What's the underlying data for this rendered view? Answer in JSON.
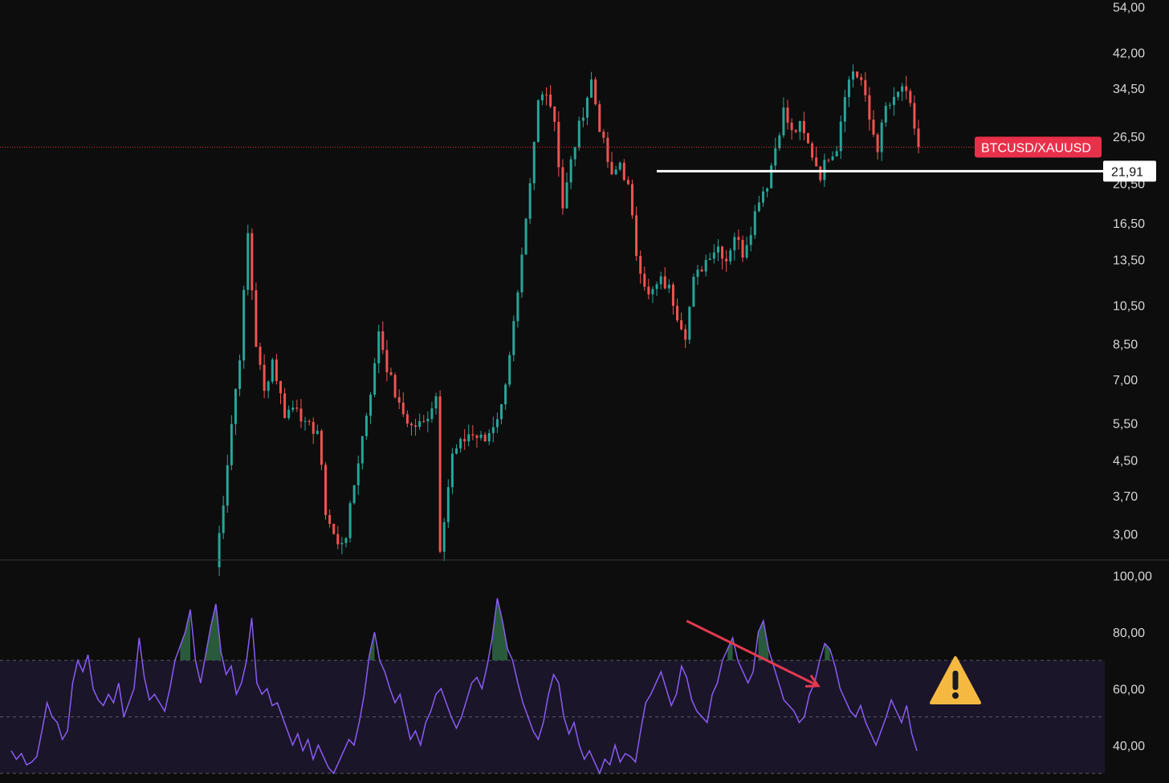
{
  "chart_data": [
    {
      "type": "candlestick",
      "symbol_label": "BTCUSD/XAUUSD",
      "y_scale": "log",
      "ylim": [
        2.6,
        56
      ],
      "y_ticks": [
        "54,00",
        "42,00",
        "34,50",
        "26,50",
        "20,50",
        "16,50",
        "13,50",
        "10,50",
        "8,50",
        "7,00",
        "5,50",
        "4,50",
        "3,70",
        "3,00"
      ],
      "y_tick_values": [
        54,
        42,
        34.5,
        26.5,
        20.5,
        16.5,
        13.5,
        10.5,
        8.5,
        7,
        5.5,
        4.5,
        3.7,
        3
      ],
      "last_price": 25.0,
      "support_line": {
        "label": "21,91",
        "value": 21.91
      },
      "colors": {
        "up": "#26a69a",
        "down": "#ef5350",
        "last_price_line": "#e53935",
        "symbol_badge": "#e8304a",
        "support": "#ffffff"
      },
      "series_anchors": [
        [
          0,
          2.5
        ],
        [
          2,
          3.6
        ],
        [
          4,
          5.5
        ],
        [
          6,
          8.0
        ],
        [
          8,
          15.5
        ],
        [
          10,
          8.5
        ],
        [
          12,
          6.5
        ],
        [
          14,
          7.8
        ],
        [
          17,
          5.8
        ],
        [
          20,
          6.1
        ],
        [
          22,
          5.4
        ],
        [
          25,
          5.3
        ],
        [
          27,
          3.4
        ],
        [
          30,
          2.8
        ],
        [
          32,
          3.0
        ],
        [
          35,
          4.5
        ],
        [
          37,
          5.8
        ],
        [
          39,
          7.5
        ],
        [
          40,
          9.2
        ],
        [
          42,
          7.5
        ],
        [
          45,
          6.0
        ],
        [
          48,
          5.4
        ],
        [
          51,
          5.5
        ],
        [
          54,
          6.4
        ],
        [
          55,
          2.8
        ],
        [
          58,
          4.6
        ],
        [
          62,
          5.2
        ],
        [
          66,
          5.0
        ],
        [
          70,
          6.0
        ],
        [
          74,
          11.0
        ],
        [
          77,
          20.0
        ],
        [
          79,
          32.0
        ],
        [
          81,
          34.5
        ],
        [
          83,
          29.0
        ],
        [
          85,
          18.0
        ],
        [
          87,
          23.0
        ],
        [
          89,
          28.0
        ],
        [
          92,
          36.0
        ],
        [
          94,
          28.0
        ],
        [
          97,
          21.0
        ],
        [
          99,
          23.0
        ],
        [
          101,
          20.0
        ],
        [
          103,
          14.0
        ],
        [
          106,
          11.0
        ],
        [
          109,
          12.0
        ],
        [
          111,
          11.5
        ],
        [
          113,
          10.0
        ],
        [
          115,
          9.0
        ],
        [
          117,
          12.0
        ],
        [
          121,
          14.0
        ],
        [
          123,
          14.5
        ],
        [
          125,
          13.5
        ],
        [
          127,
          15.5
        ],
        [
          129,
          14.0
        ],
        [
          131,
          16.0
        ],
        [
          133,
          19.0
        ],
        [
          135,
          20.5
        ],
        [
          137,
          25.0
        ],
        [
          139,
          30.5
        ],
        [
          141,
          27.0
        ],
        [
          143,
          28.0
        ],
        [
          146,
          24.0
        ],
        [
          148,
          21.5
        ],
        [
          150,
          24.0
        ],
        [
          152,
          25.0
        ],
        [
          154,
          34.0
        ],
        [
          156,
          38.0
        ],
        [
          158,
          36.0
        ],
        [
          160,
          29.0
        ],
        [
          162,
          25.0
        ],
        [
          164,
          31.0
        ],
        [
          166,
          32.0
        ],
        [
          168,
          35.0
        ],
        [
          170,
          31.0
        ],
        [
          172,
          25.0
        ]
      ]
    },
    {
      "type": "line",
      "indicator": "oscillator",
      "ylim": [
        28,
        105
      ],
      "y_ticks": [
        "100,00",
        "80,00",
        "60,00",
        "40,00"
      ],
      "y_tick_values": [
        100,
        80,
        60,
        40
      ],
      "band": [
        30,
        70
      ],
      "midline": 50,
      "colors": {
        "line": "#8a5cf5",
        "band_fill": "#1a1528",
        "overbought_fill": "#2a5a3c",
        "divergence_arrow": "#e53950",
        "warning": "#f5b942"
      },
      "values": [
        38,
        35,
        37,
        33,
        34,
        36,
        45,
        55,
        50,
        48,
        42,
        45,
        62,
        70,
        66,
        72,
        60,
        56,
        54,
        58,
        55,
        62,
        50,
        55,
        60,
        78,
        64,
        56,
        58,
        55,
        52,
        60,
        70,
        75,
        80,
        88,
        70,
        62,
        72,
        82,
        90,
        73,
        65,
        68,
        58,
        62,
        70,
        85,
        62,
        58,
        60,
        54,
        55,
        50,
        45,
        40,
        44,
        38,
        42,
        35,
        40,
        36,
        32,
        30,
        34,
        38,
        42,
        40,
        48,
        58,
        72,
        80,
        70,
        66,
        60,
        55,
        58,
        50,
        42,
        45,
        40,
        48,
        52,
        58,
        60,
        55,
        50,
        46,
        50,
        56,
        62,
        64,
        60,
        68,
        78,
        92,
        84,
        74,
        70,
        62,
        55,
        50,
        45,
        42,
        48,
        58,
        65,
        62,
        50,
        44,
        48,
        40,
        35,
        38,
        34,
        30,
        35,
        33,
        40,
        34,
        37,
        36,
        34,
        45,
        55,
        58,
        62,
        66,
        60,
        54,
        58,
        68,
        64,
        56,
        52,
        50,
        48,
        58,
        62,
        70,
        74,
        78,
        70,
        66,
        62,
        66,
        80,
        84,
        74,
        68,
        62,
        56,
        54,
        52,
        48,
        50,
        58,
        62,
        70,
        76,
        74,
        68,
        60,
        56,
        52,
        50,
        54,
        48,
        44,
        40,
        45,
        50,
        56,
        52,
        48,
        54,
        44,
        38
      ],
      "divergence": {
        "from": [
          132,
          84
        ],
        "to": [
          153,
          61
        ]
      }
    }
  ]
}
